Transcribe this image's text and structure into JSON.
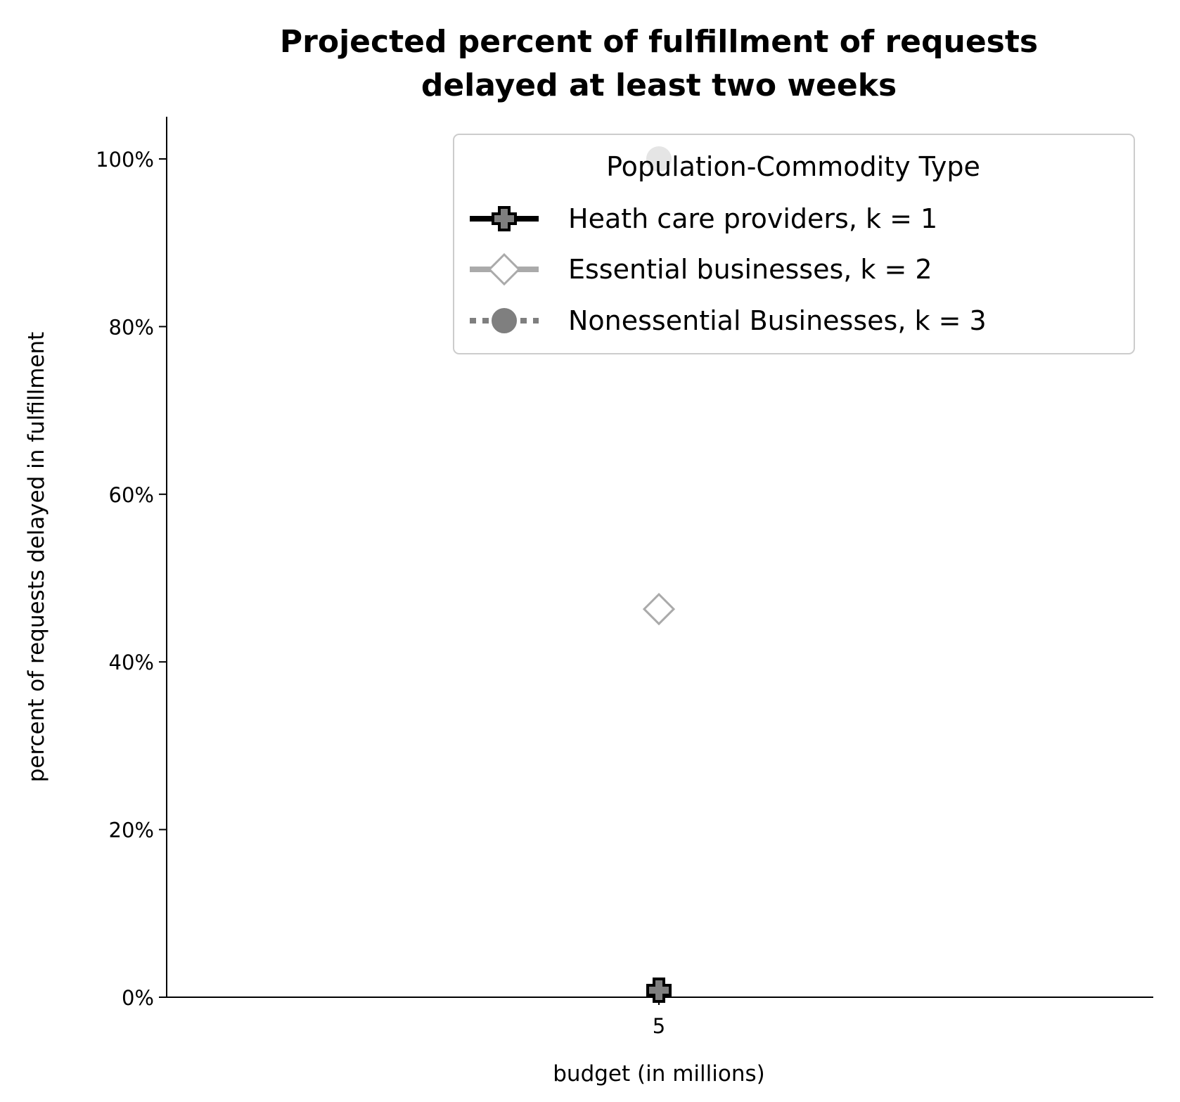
{
  "chart_data": {
    "type": "line",
    "title_line1": "Projected percent of fulfillment of requests",
    "title_line2": "delayed at least two weeks",
    "xlabel": "budget (in millions)",
    "ylabel": "percent of requests delayed in fulfillment",
    "categories": [
      "5"
    ],
    "x": [
      5
    ],
    "ylim": [
      0,
      1.05
    ],
    "y_ticks": [
      0,
      0.2,
      0.4,
      0.6,
      0.8,
      1.0
    ],
    "y_tick_labels": [
      "0%",
      "20%",
      "40%",
      "60%",
      "80%",
      "100%"
    ],
    "grid": false,
    "legend": {
      "title": "Population-Commodity Type",
      "placement": "upper right"
    },
    "series": [
      {
        "name": "Heath care providers, k = 1",
        "values": [
          0.0
        ],
        "color": "#000000",
        "marker": "plus-filled",
        "marker_face": "#7f7f7f",
        "linestyle": "solid"
      },
      {
        "name": "Essential businesses, k = 2",
        "values": [
          0.463
        ],
        "color": "#aaaaaa",
        "marker": "diamond",
        "marker_face": "#ffffff",
        "linestyle": "solid"
      },
      {
        "name": "Nonessential Businesses, k = 3",
        "values": [
          1.0
        ],
        "color": "#7f7f7f",
        "marker": "circle",
        "marker_face": "#7f7f7f",
        "linestyle": "dotted"
      }
    ]
  }
}
